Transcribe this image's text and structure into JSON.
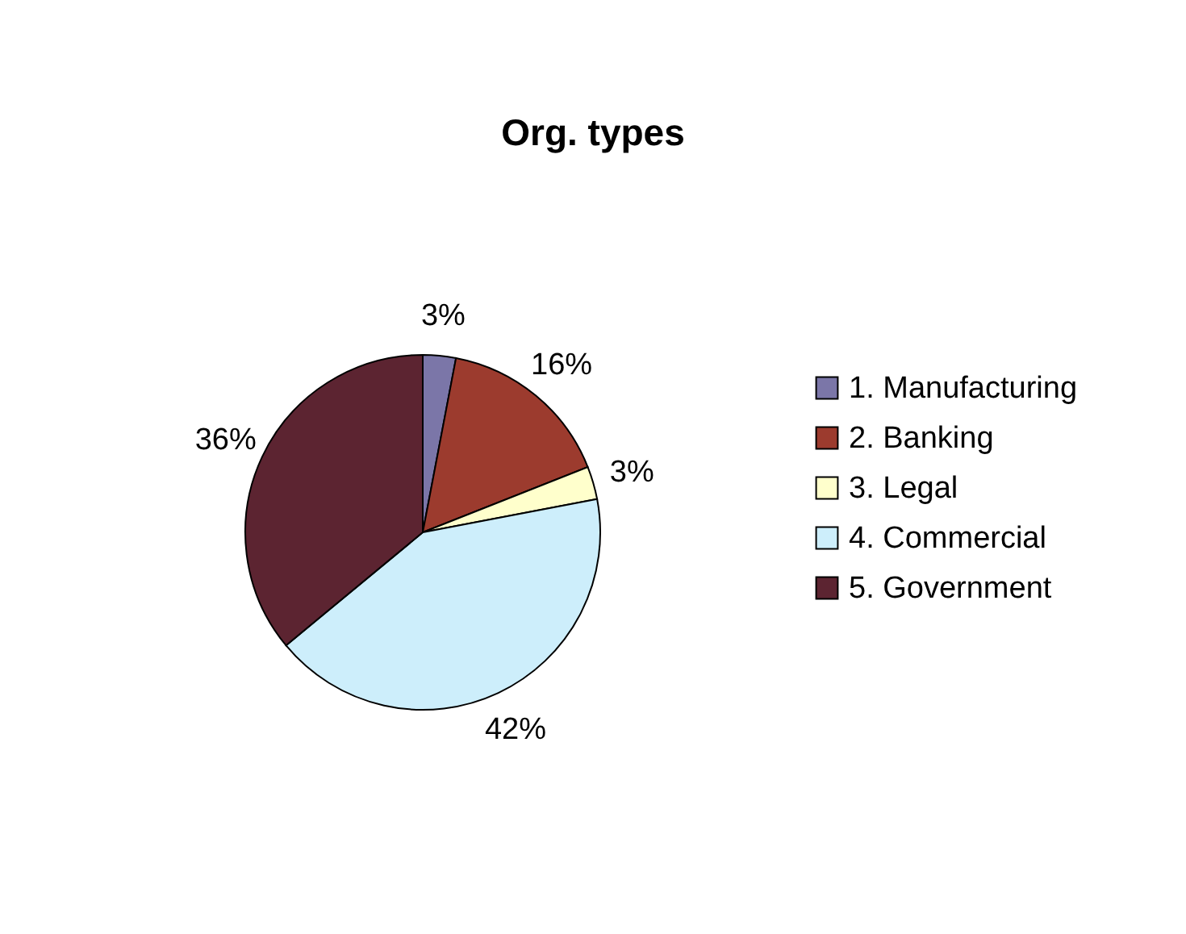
{
  "chart_data": {
    "type": "pie",
    "title": "Org. types",
    "categories": [
      "1. Manufacturing",
      "2. Banking",
      "3. Legal",
      "4. Commercial",
      "5. Government"
    ],
    "values": [
      3,
      16,
      3,
      42,
      36
    ],
    "colors": [
      "#7b76a8",
      "#9c3b2e",
      "#ffffcc",
      "#cdeefb",
      "#5c2431"
    ],
    "value_labels": [
      "3%",
      "16%",
      "3%",
      "42%",
      "36%"
    ],
    "legend": "right"
  }
}
